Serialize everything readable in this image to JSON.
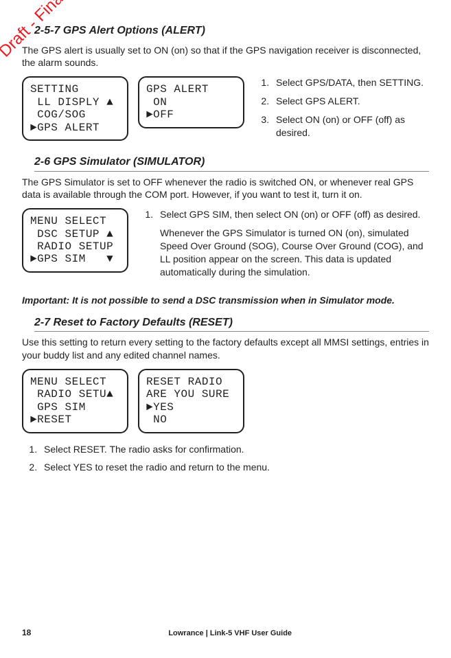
{
  "watermark": "Draft - Final Approval",
  "section257": {
    "heading": "2-5-7 GPS Alert Options (ALERT)",
    "intro": "The GPS alert is usually set to ON (on) so that if the GPS navigation receiver is disconnected, the alarm sounds.",
    "lcd1": "SETTING\n LL DISPLY ▲\n COG/SOG\n►GPS ALERT",
    "lcd2": "GPS ALERT\n ON\n►OFF",
    "steps": {
      "s1": "Select GPS/DATA, then SETTING.",
      "s2": "Select GPS ALERT.",
      "s3": "Select ON (on) or OFF (off) as desired."
    }
  },
  "section26": {
    "heading": "2-6 GPS Simulator (SIMULATOR)",
    "intro": "The GPS Simulator is set to OFF whenever the radio is switched ON, or whenever real GPS data is available through the COM port. However, if you want to test it, turn it on.",
    "lcd1": "MENU SELECT\n DSC SETUP ▲\n RADIO SETUP\n►GPS SIM   ▼",
    "steps": {
      "s1": "Select GPS SIM, then select ON (on) or OFF (off) as desired.",
      "s1_note": "Whenever the GPS Simulator is turned ON (on),  simulated Speed Over Ground (SOG), Course Over Ground (COG), and LL position appear on the screen. This data is updated automatically during the simulation."
    },
    "important": "Important: It is not possible to send a DSC transmission when in Simulator mode."
  },
  "section27": {
    "heading": "2-7 Reset to Factory Defaults (RESET)",
    "intro": "Use this setting to return every setting to the factory defaults except all MMSI settings, entries in your buddy list and any edited channel names.",
    "lcd1": "MENU SELECT\n RADIO SETU▲\n GPS SIM\n►RESET",
    "lcd2": "RESET RADIO\nARE YOU SURE\n►YES\n NO",
    "steps": {
      "s1": "Select  RESET. The radio asks for confirmation.",
      "s2": "Select YES to reset the radio and return to the menu."
    }
  },
  "footer": {
    "page": "18",
    "guide": "Lowrance | Link-5 VHF User Guide"
  }
}
